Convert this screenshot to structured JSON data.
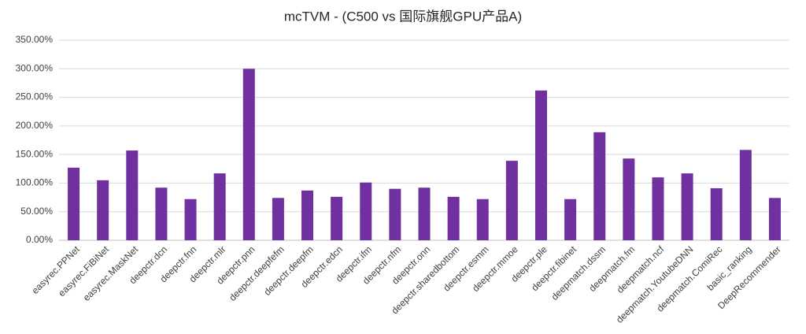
{
  "chart_data": {
    "type": "bar",
    "title": "mcTVM - (C500 vs 国际旗舰GPU产品A)",
    "categories": [
      "easyrec.PPNet",
      "easyrec.FiBiNet",
      "easyrec.MaskNet",
      "deepctr.dcn",
      "deepctr.fnn",
      "deepctr.mlr",
      "deepctr.pnn",
      "deepctr.deepfefm",
      "deepctr.deepfm",
      "deepctr.edcn",
      "deepctr.ifm",
      "deepctr.nfm",
      "deepctr.onn",
      "deepctr.sharedbottom",
      "deepctr.esmm",
      "deepctr.mmoe",
      "deepctr.ple",
      "deepctr.fibinet",
      "deepmatch.dssm",
      "deepmatch.fm",
      "deepmatch.ncf",
      "deepmatch.YoutubeDNN",
      "deepmatch.ComiRec",
      "basic_ranking",
      "DeepRecommender"
    ],
    "values": [
      127,
      105,
      157,
      92,
      72,
      117,
      300,
      74,
      87,
      76,
      101,
      90,
      92,
      76,
      72,
      139,
      262,
      72,
      189,
      143,
      110,
      117,
      91,
      158,
      74
    ],
    "color": "#7030a0",
    "ylim": [
      0,
      350
    ],
    "yticks": [
      {
        "value": 0,
        "label": "0.00%"
      },
      {
        "value": 50,
        "label": "50.00%"
      },
      {
        "value": 100,
        "label": "100.00%"
      },
      {
        "value": 150,
        "label": "150.00%"
      },
      {
        "value": 200,
        "label": "200.00%"
      },
      {
        "value": 250,
        "label": "250.00%"
      },
      {
        "value": 300,
        "label": "300.00%"
      },
      {
        "value": 350,
        "label": "350.00%"
      }
    ],
    "grid": true
  }
}
